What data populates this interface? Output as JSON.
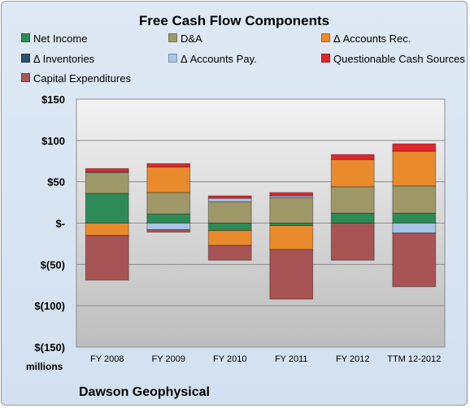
{
  "title": "Free Cash Flow Components",
  "unit_label": "millions",
  "company": "Dawson Geophysical",
  "chart_data": {
    "type": "bar",
    "stacked": true,
    "title": "Free Cash Flow Components",
    "ylabel": "millions",
    "ylim": [
      -150,
      150
    ],
    "yticks": [
      150,
      100,
      50,
      0,
      -50,
      -100,
      -150
    ],
    "ytick_labels": [
      "$150",
      "$100",
      "$50",
      "$-",
      "$(50)",
      "$(100)",
      "$(150)"
    ],
    "grid": true,
    "legend_position": "top",
    "categories": [
      "FY 2008",
      "FY 2009",
      "FY 2010",
      "FY 2011",
      "FY 2012",
      "TTM 12-2012"
    ],
    "series": [
      {
        "name": "Net Income",
        "color": "#2e8b57",
        "values": [
          36,
          11,
          -9,
          -3,
          12,
          12
        ]
      },
      {
        "name": "D&A",
        "color": "#9e9868",
        "values": [
          25,
          26,
          26,
          31,
          32,
          33
        ]
      },
      {
        "name": "Δ Accounts Rec.",
        "color": "#e98a2c",
        "values": [
          -15,
          31,
          -18,
          -29,
          33,
          42
        ]
      },
      {
        "name": "Δ Inventories",
        "color": "#2f4f6f",
        "values": [
          0,
          0,
          0,
          0,
          0,
          0
        ]
      },
      {
        "name": "Δ Accounts Pay.",
        "color": "#a9c3e6",
        "values": [
          1,
          -8,
          4,
          2,
          0,
          -12
        ]
      },
      {
        "name": "Questionable Cash Sources",
        "color": "#e0272b",
        "values": [
          4,
          4,
          3,
          4,
          6,
          9
        ]
      },
      {
        "name": "Capital Expenditures",
        "color": "#a85454",
        "values": [
          -54,
          -3,
          -18,
          -60,
          -45,
          -65
        ]
      }
    ]
  }
}
